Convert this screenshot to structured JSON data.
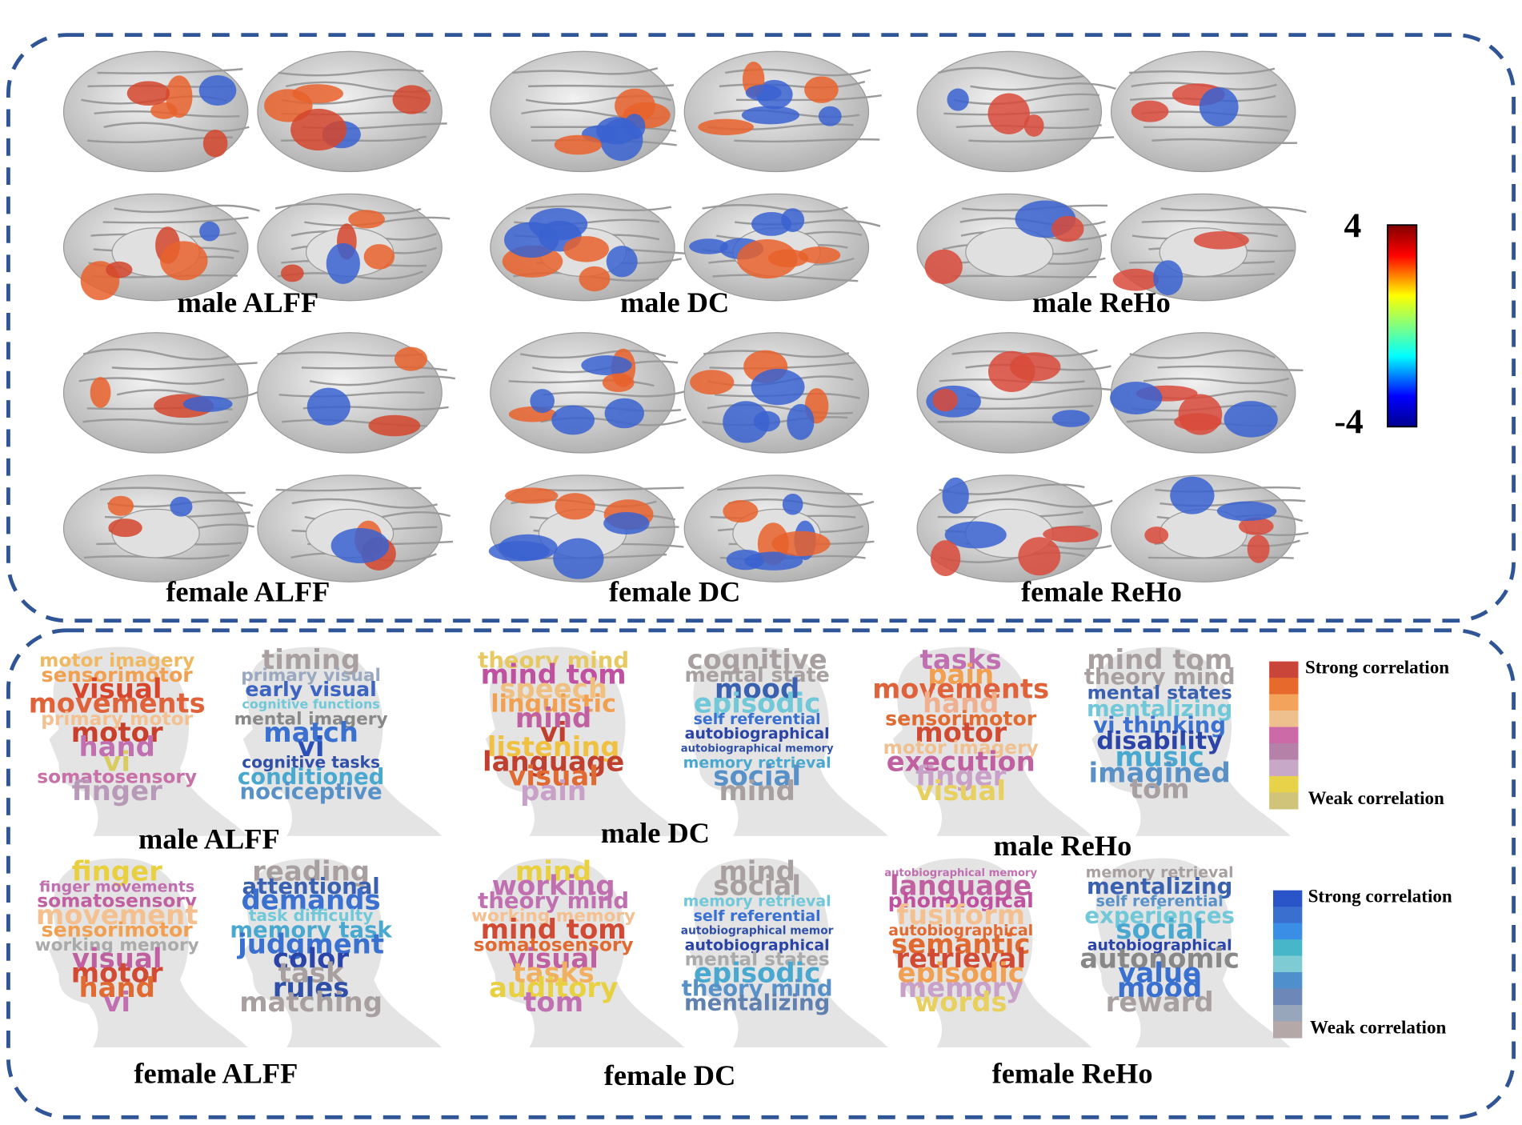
{
  "brain_maps": [
    {
      "label": "male ALFF"
    },
    {
      "label": "male DC"
    },
    {
      "label": "male ReHo"
    },
    {
      "label": "female ALFF"
    },
    {
      "label": "female DC"
    },
    {
      "label": "female ReHo"
    }
  ],
  "colorbar": {
    "ticks": [
      4,
      -4
    ]
  },
  "word_clouds": [
    {
      "label": "male ALFF",
      "clouds": [
        [
          {
            "text": "motor imagery",
            "color": "#f0b860"
          },
          {
            "text": "sensorimotor",
            "color": "#f0a050"
          },
          {
            "text": "visual",
            "color": "#d6452c"
          },
          {
            "text": "movements",
            "color": "#e0623a"
          },
          {
            "text": "primary motor",
            "color": "#f4c090"
          },
          {
            "text": "motor",
            "color": "#c8402c"
          },
          {
            "text": "hand",
            "color": "#c070b0"
          },
          {
            "text": "vi",
            "color": "#d8cc60"
          },
          {
            "text": "somatosensory",
            "color": "#c870a8"
          },
          {
            "text": "finger",
            "color": "#b89ab8"
          }
        ],
        [
          {
            "text": "timing",
            "color": "#a8a0a0"
          },
          {
            "text": "primary visual",
            "color": "#9aa8c0"
          },
          {
            "text": "early visual",
            "color": "#3c64c0"
          },
          {
            "text": "cognitive functions",
            "color": "#70c8d8"
          },
          {
            "text": "mental imagery",
            "color": "#888888"
          },
          {
            "text": "match",
            "color": "#3a70d0"
          },
          {
            "text": "vi",
            "color": "#2a50b8"
          },
          {
            "text": "cognitive tasks",
            "color": "#3050a8"
          },
          {
            "text": "conditioned",
            "color": "#48a8d0"
          },
          {
            "text": "nociceptive",
            "color": "#5890c8"
          }
        ]
      ]
    },
    {
      "label": "male DC",
      "clouds": [
        [
          {
            "text": "theory mind",
            "color": "#e8c860"
          },
          {
            "text": "mind tom",
            "color": "#c050a0"
          },
          {
            "text": "speech",
            "color": "#f0c080"
          },
          {
            "text": "linguistic",
            "color": "#f0a050"
          },
          {
            "text": "mind",
            "color": "#c060a0"
          },
          {
            "text": "vi",
            "color": "#c04030"
          },
          {
            "text": "listening",
            "color": "#f0c040"
          },
          {
            "text": "language",
            "color": "#c04030"
          },
          {
            "text": "visual",
            "color": "#e06a30"
          },
          {
            "text": "pain",
            "color": "#c8a0c8"
          }
        ],
        [
          {
            "text": "cognitive",
            "color": "#a8a0a0"
          },
          {
            "text": "mental state",
            "color": "#a8a0a0"
          },
          {
            "text": "mood",
            "color": "#3a60b0"
          },
          {
            "text": "episodic",
            "color": "#70c8d8"
          },
          {
            "text": "self referential",
            "color": "#3a70d0"
          },
          {
            "text": "autobiographical",
            "color": "#2a44a8"
          },
          {
            "text": "autobiographical memory",
            "color": "#3050a8"
          },
          {
            "text": "memory retrieval",
            "color": "#48a8d0"
          },
          {
            "text": "social",
            "color": "#5890c8"
          },
          {
            "text": "mind",
            "color": "#a8a0a0"
          }
        ]
      ]
    },
    {
      "label": "male ReHo",
      "clouds": [
        [
          {
            "text": "tasks",
            "color": "#c070b0"
          },
          {
            "text": "pain",
            "color": "#f0a050"
          },
          {
            "text": "movements",
            "color": "#e0623a"
          },
          {
            "text": "hand",
            "color": "#f0b090"
          },
          {
            "text": "sensorimotor",
            "color": "#e06a30"
          },
          {
            "text": "motor",
            "color": "#d04a34"
          },
          {
            "text": "motor imagery",
            "color": "#f0c090"
          },
          {
            "text": "execution",
            "color": "#c060a0"
          },
          {
            "text": "finger",
            "color": "#c8a0c8"
          },
          {
            "text": "visual",
            "color": "#e8d060"
          }
        ],
        [
          {
            "text": "mind tom",
            "color": "#a8a0a0"
          },
          {
            "text": "theory mind",
            "color": "#a8a0a0"
          },
          {
            "text": "mental states",
            "color": "#3a60b0"
          },
          {
            "text": "mentalizing",
            "color": "#70c8d8"
          },
          {
            "text": "vi thinking",
            "color": "#3a70d0"
          },
          {
            "text": "disability",
            "color": "#2a44a8"
          },
          {
            "text": "music",
            "color": "#48a8d0"
          },
          {
            "text": "imagined",
            "color": "#5890c8"
          },
          {
            "text": "tom",
            "color": "#a8a0a0"
          }
        ]
      ]
    },
    {
      "label": "female ALFF",
      "clouds": [
        [
          {
            "text": "finger",
            "color": "#e8d040"
          },
          {
            "text": "finger movements",
            "color": "#c070b0"
          },
          {
            "text": "somatosensory",
            "color": "#c060a0"
          },
          {
            "text": "movement",
            "color": "#f4c090"
          },
          {
            "text": "sensorimotor",
            "color": "#f0a050"
          },
          {
            "text": "working memory",
            "color": "#aaaaaa"
          },
          {
            "text": "visual",
            "color": "#c060a0"
          },
          {
            "text": "motor",
            "color": "#d04a34"
          },
          {
            "text": "hand",
            "color": "#e06a30"
          },
          {
            "text": "vi",
            "color": "#c070b0"
          }
        ],
        [
          {
            "text": "reading",
            "color": "#a8a0a0"
          },
          {
            "text": "attentional",
            "color": "#3a60b0"
          },
          {
            "text": "demands",
            "color": "#3a70d0"
          },
          {
            "text": "task difficulty",
            "color": "#70c8d8"
          },
          {
            "text": "memory task",
            "color": "#48a8d0"
          },
          {
            "text": "judgment",
            "color": "#3a70d0"
          },
          {
            "text": "color",
            "color": "#2a44a8"
          },
          {
            "text": "task",
            "color": "#a8a0a0"
          },
          {
            "text": "rules",
            "color": "#3050a8"
          },
          {
            "text": "matching",
            "color": "#a8a0a0"
          }
        ]
      ]
    },
    {
      "label": "female DC",
      "clouds": [
        [
          {
            "text": "mind",
            "color": "#e8d040"
          },
          {
            "text": "working",
            "color": "#c070b0"
          },
          {
            "text": "theory mind",
            "color": "#c070b0"
          },
          {
            "text": "working memory",
            "color": "#f4c090"
          },
          {
            "text": "mind tom",
            "color": "#d04a34"
          },
          {
            "text": "somatosensory",
            "color": "#e06a30"
          },
          {
            "text": "visual",
            "color": "#c060a0"
          },
          {
            "text": "tasks",
            "color": "#f0b060"
          },
          {
            "text": "auditory",
            "color": "#e8d040"
          },
          {
            "text": "tom",
            "color": "#c070b0"
          }
        ],
        [
          {
            "text": "mind",
            "color": "#a8a0a0"
          },
          {
            "text": "social",
            "color": "#a8a0a0"
          },
          {
            "text": "memory retrieval",
            "color": "#70c8d8"
          },
          {
            "text": "self referential",
            "color": "#3a70d0"
          },
          {
            "text": "autobiographical memor",
            "color": "#3050a8"
          },
          {
            "text": "autobiographical",
            "color": "#2a44a8"
          },
          {
            "text": "mental states",
            "color": "#aaaaaa"
          },
          {
            "text": "episodic",
            "color": "#48a8d0"
          },
          {
            "text": "theory mind",
            "color": "#5890c8"
          },
          {
            "text": "mentalizing",
            "color": "#6080b0"
          }
        ]
      ]
    },
    {
      "label": "female ReHo",
      "clouds": [
        [
          {
            "text": "autobiographical memory",
            "color": "#c070b0"
          },
          {
            "text": "language",
            "color": "#c060a0"
          },
          {
            "text": "phonological",
            "color": "#c050a0"
          },
          {
            "text": "fusiform",
            "color": "#f4c090"
          },
          {
            "text": "autobiographical",
            "color": "#e06a30"
          },
          {
            "text": "semantic",
            "color": "#e06a30"
          },
          {
            "text": "retrieval",
            "color": "#d04a34"
          },
          {
            "text": "episodic",
            "color": "#f0a050"
          },
          {
            "text": "memory",
            "color": "#c8a0c8"
          },
          {
            "text": "words",
            "color": "#e8d060"
          }
        ],
        [
          {
            "text": "memory retrieval",
            "color": "#a8a0a0"
          },
          {
            "text": "mentalizing",
            "color": "#3a60b0"
          },
          {
            "text": "self referential",
            "color": "#5890c8"
          },
          {
            "text": "experiences",
            "color": "#70c8d8"
          },
          {
            "text": "social",
            "color": "#48a8d0"
          },
          {
            "text": "autobiographical",
            "color": "#2a44a8"
          },
          {
            "text": "autonomic",
            "color": "#888888"
          },
          {
            "text": "value",
            "color": "#3a70d0"
          },
          {
            "text": "mood",
            "color": "#3a70d0"
          },
          {
            "text": "reward",
            "color": "#a8a0a0"
          }
        ]
      ]
    }
  ],
  "legends": [
    {
      "top": "Strong correlation",
      "bottom": "Weak correlation",
      "colors": [
        "#c9453a",
        "#e8692c",
        "#f4a35c",
        "#eec08e",
        "#cc6aa8",
        "#b681a8",
        "#c7a8c6",
        "#e8d24a",
        "#d0c47a"
      ]
    },
    {
      "top": "Strong correlation",
      "bottom": "Weak correlation",
      "colors": [
        "#2a55c9",
        "#3a6fcf",
        "#3b8ee6",
        "#48b6c9",
        "#7fcbd4",
        "#4f8fcb",
        "#6c87b8",
        "#98a6bb",
        "#b5a8a8"
      ]
    }
  ]
}
